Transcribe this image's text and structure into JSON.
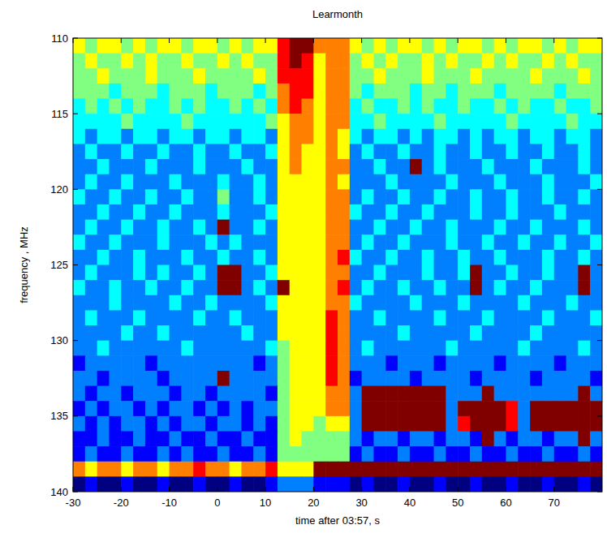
{
  "chart_data": {
    "type": "heatmap",
    "title": "Learmonth",
    "x_label": "time after 03:57, s",
    "y_label": "frequency , MHz",
    "xlim": [
      -30,
      80
    ],
    "ylim": [
      140,
      110
    ],
    "xticks": [
      -30,
      -20,
      -10,
      0,
      10,
      20,
      30,
      40,
      50,
      60,
      70
    ],
    "yticks": [
      110,
      115,
      120,
      125,
      130,
      135,
      140
    ],
    "x": [
      -30,
      -27.5,
      -25,
      -22.5,
      -20,
      -17.5,
      -15,
      -12.5,
      -10,
      -7.5,
      -5,
      -2.5,
      0,
      2.5,
      5,
      7.5,
      10,
      12.5,
      15,
      17.5,
      20,
      22.5,
      25,
      27.5,
      30,
      32.5,
      35,
      37.5,
      40,
      42.5,
      45,
      47.5,
      50,
      52.5,
      55,
      57.5,
      60,
      62.5,
      65,
      67.5,
      70,
      72.5,
      75,
      77.5
    ],
    "y": [
      110,
      111,
      112,
      113,
      114,
      115,
      116,
      117,
      118,
      119,
      120,
      121,
      122,
      123,
      124,
      125,
      126,
      127,
      128,
      129,
      130,
      131,
      132,
      133,
      134,
      135,
      136,
      137,
      138,
      139
    ],
    "cells": [
      [
        6,
        5,
        6,
        6,
        5,
        6,
        5,
        6,
        6,
        5,
        6,
        6,
        5,
        6,
        5,
        6,
        6,
        8,
        9,
        9,
        7,
        7,
        7,
        6,
        5,
        6,
        5,
        6,
        6,
        5,
        6,
        5,
        6,
        6,
        5,
        6,
        5,
        6,
        6,
        5,
        6,
        5,
        6,
        6
      ],
      [
        5,
        6,
        5,
        5,
        6,
        5,
        6,
        5,
        5,
        6,
        5,
        5,
        6,
        5,
        6,
        5,
        5,
        8,
        9,
        8,
        6,
        7,
        7,
        5,
        6,
        5,
        6,
        5,
        5,
        6,
        5,
        6,
        5,
        5,
        6,
        5,
        6,
        5,
        5,
        6,
        5,
        6,
        5,
        5
      ],
      [
        5,
        5,
        6,
        5,
        5,
        5,
        6,
        5,
        5,
        5,
        6,
        5,
        5,
        5,
        5,
        6,
        5,
        8,
        8,
        8,
        6,
        7,
        7,
        5,
        5,
        6,
        5,
        5,
        5,
        6,
        5,
        5,
        5,
        6,
        5,
        5,
        5,
        5,
        6,
        5,
        5,
        5,
        6,
        5
      ],
      [
        5,
        5,
        5,
        4,
        5,
        5,
        5,
        4,
        5,
        5,
        5,
        4,
        5,
        5,
        5,
        4,
        5,
        7,
        8,
        8,
        6,
        7,
        7,
        5,
        4,
        5,
        5,
        5,
        4,
        5,
        5,
        4,
        5,
        5,
        5,
        4,
        5,
        5,
        5,
        5,
        4,
        5,
        5,
        5
      ],
      [
        4,
        5,
        4,
        5,
        4,
        5,
        4,
        4,
        5,
        4,
        5,
        4,
        4,
        5,
        4,
        5,
        4,
        7,
        8,
        7,
        6,
        7,
        7,
        4,
        5,
        4,
        4,
        5,
        4,
        5,
        4,
        4,
        5,
        4,
        4,
        5,
        4,
        5,
        4,
        4,
        5,
        4,
        4,
        5
      ],
      [
        4,
        4,
        4,
        4,
        5,
        4,
        4,
        4,
        4,
        5,
        4,
        4,
        4,
        4,
        4,
        4,
        5,
        6,
        7,
        7,
        6,
        7,
        7,
        4,
        4,
        5,
        4,
        4,
        4,
        4,
        5,
        4,
        4,
        4,
        4,
        4,
        5,
        4,
        4,
        4,
        4,
        5,
        4,
        4
      ],
      [
        4,
        3,
        4,
        4,
        3,
        4,
        4,
        3,
        4,
        4,
        3,
        4,
        4,
        3,
        4,
        4,
        3,
        6,
        7,
        7,
        6,
        7,
        6,
        4,
        3,
        4,
        4,
        3,
        4,
        3,
        4,
        4,
        3,
        4,
        3,
        4,
        4,
        3,
        4,
        4,
        3,
        4,
        4,
        3
      ],
      [
        3,
        4,
        3,
        3,
        4,
        3,
        3,
        4,
        3,
        3,
        4,
        3,
        3,
        4,
        3,
        3,
        4,
        6,
        7,
        6,
        6,
        7,
        6,
        3,
        4,
        3,
        3,
        4,
        3,
        3,
        4,
        3,
        3,
        4,
        3,
        3,
        4,
        3,
        3,
        4,
        3,
        3,
        4,
        3
      ],
      [
        3,
        3,
        4,
        3,
        3,
        3,
        4,
        3,
        3,
        3,
        4,
        3,
        3,
        3,
        4,
        3,
        3,
        6,
        7,
        6,
        6,
        7,
        7,
        3,
        3,
        4,
        3,
        3,
        9,
        3,
        4,
        3,
        3,
        3,
        4,
        3,
        3,
        3,
        4,
        3,
        3,
        3,
        4,
        3
      ],
      [
        3,
        4,
        3,
        3,
        4,
        3,
        3,
        3,
        4,
        3,
        3,
        3,
        4,
        3,
        3,
        4,
        3,
        6,
        6,
        6,
        6,
        7,
        6,
        3,
        3,
        3,
        4,
        3,
        3,
        3,
        3,
        4,
        3,
        3,
        3,
        4,
        3,
        3,
        3,
        4,
        3,
        3,
        3,
        4
      ],
      [
        4,
        3,
        3,
        4,
        3,
        3,
        4,
        3,
        3,
        4,
        3,
        3,
        5,
        3,
        3,
        4,
        3,
        6,
        6,
        6,
        6,
        7,
        7,
        3,
        4,
        3,
        3,
        4,
        3,
        3,
        4,
        3,
        3,
        4,
        3,
        3,
        4,
        3,
        3,
        4,
        3,
        3,
        4,
        3
      ],
      [
        3,
        3,
        4,
        3,
        3,
        4,
        3,
        3,
        4,
        3,
        3,
        3,
        4,
        3,
        3,
        3,
        4,
        6,
        6,
        6,
        6,
        7,
        7,
        4,
        3,
        3,
        4,
        3,
        3,
        4,
        3,
        3,
        3,
        4,
        3,
        3,
        4,
        3,
        3,
        3,
        4,
        3,
        3,
        3
      ],
      [
        3,
        4,
        3,
        3,
        4,
        3,
        3,
        4,
        3,
        3,
        4,
        3,
        9,
        3,
        3,
        4,
        3,
        6,
        6,
        6,
        6,
        7,
        7,
        3,
        3,
        4,
        3,
        3,
        4,
        3,
        3,
        4,
        3,
        3,
        3,
        4,
        3,
        3,
        4,
        3,
        3,
        3,
        4,
        3
      ],
      [
        4,
        3,
        3,
        4,
        3,
        3,
        3,
        4,
        3,
        3,
        3,
        4,
        3,
        4,
        3,
        3,
        3,
        6,
        6,
        6,
        6,
        7,
        7,
        3,
        4,
        3,
        3,
        4,
        3,
        3,
        3,
        4,
        3,
        3,
        4,
        3,
        3,
        4,
        3,
        3,
        4,
        3,
        3,
        4
      ],
      [
        3,
        3,
        4,
        3,
        3,
        4,
        3,
        3,
        3,
        4,
        3,
        3,
        4,
        3,
        3,
        4,
        3,
        6,
        6,
        6,
        6,
        7,
        8,
        4,
        3,
        3,
        4,
        3,
        3,
        4,
        3,
        3,
        4,
        3,
        3,
        4,
        3,
        3,
        3,
        4,
        3,
        3,
        4,
        3
      ],
      [
        3,
        4,
        3,
        3,
        3,
        4,
        3,
        4,
        3,
        3,
        4,
        3,
        9,
        9,
        3,
        3,
        4,
        6,
        6,
        6,
        6,
        7,
        7,
        3,
        3,
        4,
        3,
        3,
        3,
        4,
        3,
        3,
        4,
        9,
        3,
        3,
        4,
        3,
        3,
        4,
        3,
        3,
        9,
        3
      ],
      [
        4,
        3,
        3,
        4,
        3,
        3,
        4,
        3,
        3,
        4,
        3,
        3,
        9,
        9,
        3,
        4,
        3,
        9,
        6,
        6,
        6,
        7,
        8,
        3,
        4,
        3,
        3,
        4,
        3,
        3,
        4,
        3,
        3,
        9,
        3,
        4,
        3,
        3,
        4,
        3,
        3,
        3,
        9,
        3
      ],
      [
        3,
        3,
        3,
        4,
        3,
        3,
        3,
        3,
        4,
        3,
        3,
        4,
        3,
        3,
        3,
        3,
        4,
        6,
        6,
        6,
        6,
        7,
        7,
        4,
        3,
        3,
        3,
        3,
        4,
        3,
        3,
        3,
        4,
        3,
        3,
        3,
        3,
        4,
        3,
        3,
        3,
        4,
        3,
        3
      ],
      [
        3,
        4,
        3,
        3,
        3,
        4,
        3,
        3,
        3,
        3,
        4,
        3,
        3,
        4,
        3,
        3,
        3,
        6,
        6,
        6,
        6,
        8,
        7,
        3,
        3,
        4,
        3,
        3,
        3,
        3,
        4,
        3,
        3,
        3,
        4,
        3,
        3,
        3,
        3,
        4,
        3,
        3,
        3,
        4
      ],
      [
        3,
        3,
        3,
        3,
        4,
        3,
        3,
        4,
        3,
        3,
        3,
        3,
        3,
        3,
        4,
        3,
        3,
        6,
        6,
        6,
        6,
        8,
        7,
        3,
        3,
        3,
        3,
        4,
        3,
        3,
        3,
        3,
        3,
        4,
        3,
        3,
        3,
        3,
        4,
        3,
        3,
        3,
        3,
        3
      ],
      [
        3,
        3,
        4,
        3,
        3,
        3,
        3,
        3,
        3,
        4,
        3,
        3,
        3,
        3,
        3,
        3,
        4,
        5,
        6,
        6,
        6,
        8,
        7,
        3,
        4,
        3,
        3,
        3,
        3,
        3,
        3,
        4,
        3,
        3,
        3,
        3,
        3,
        4,
        3,
        3,
        3,
        3,
        4,
        3
      ],
      [
        2,
        3,
        3,
        3,
        3,
        3,
        2,
        3,
        3,
        3,
        3,
        3,
        3,
        3,
        3,
        2,
        3,
        5,
        6,
        6,
        6,
        8,
        7,
        3,
        3,
        3,
        2,
        3,
        3,
        3,
        2,
        3,
        3,
        3,
        3,
        2,
        3,
        3,
        3,
        3,
        2,
        3,
        3,
        3
      ],
      [
        3,
        3,
        2,
        3,
        3,
        3,
        3,
        2,
        3,
        3,
        3,
        3,
        9,
        3,
        3,
        3,
        3,
        5,
        6,
        6,
        6,
        8,
        7,
        2,
        3,
        3,
        3,
        3,
        2,
        3,
        3,
        3,
        3,
        2,
        3,
        3,
        3,
        3,
        2,
        3,
        3,
        3,
        3,
        2
      ],
      [
        3,
        2,
        3,
        3,
        2,
        3,
        3,
        3,
        2,
        3,
        3,
        2,
        3,
        3,
        3,
        3,
        2,
        5,
        6,
        6,
        6,
        7,
        7,
        3,
        9,
        9,
        9,
        9,
        9,
        9,
        9,
        3,
        3,
        3,
        9,
        3,
        3,
        3,
        3,
        3,
        3,
        3,
        9,
        3
      ],
      [
        2,
        3,
        2,
        3,
        3,
        2,
        3,
        2,
        3,
        3,
        2,
        3,
        2,
        3,
        2,
        3,
        3,
        5,
        6,
        6,
        6,
        7,
        7,
        3,
        9,
        9,
        9,
        9,
        9,
        9,
        9,
        3,
        9,
        9,
        9,
        9,
        8,
        3,
        9,
        9,
        9,
        9,
        9,
        9
      ],
      [
        3,
        2,
        3,
        2,
        3,
        3,
        2,
        3,
        2,
        3,
        3,
        2,
        3,
        3,
        2,
        3,
        2,
        5,
        6,
        6,
        5,
        6,
        6,
        3,
        9,
        9,
        9,
        9,
        9,
        9,
        9,
        3,
        8,
        9,
        9,
        9,
        8,
        3,
        9,
        9,
        9,
        9,
        9,
        9
      ],
      [
        2,
        2,
        3,
        2,
        2,
        3,
        2,
        2,
        3,
        2,
        2,
        3,
        2,
        2,
        3,
        2,
        2,
        5,
        6,
        5,
        5,
        5,
        5,
        3,
        2,
        3,
        3,
        2,
        3,
        3,
        2,
        3,
        3,
        2,
        9,
        3,
        2,
        3,
        3,
        2,
        3,
        3,
        9,
        3
      ],
      [
        2,
        3,
        2,
        2,
        3,
        2,
        2,
        3,
        2,
        3,
        2,
        2,
        3,
        2,
        2,
        3,
        2,
        5,
        5,
        5,
        5,
        5,
        5,
        2,
        3,
        2,
        2,
        3,
        2,
        2,
        3,
        2,
        2,
        3,
        2,
        2,
        3,
        2,
        2,
        3,
        2,
        2,
        3,
        2
      ],
      [
        7,
        6,
        7,
        7,
        6,
        7,
        7,
        6,
        7,
        7,
        8,
        7,
        7,
        6,
        7,
        7,
        8,
        6,
        6,
        6,
        9,
        9,
        9,
        9,
        9,
        9,
        9,
        9,
        9,
        9,
        9,
        9,
        9,
        9,
        9,
        9,
        9,
        9,
        9,
        9,
        9,
        9,
        9,
        9
      ],
      [
        1,
        2,
        1,
        1,
        2,
        1,
        1,
        2,
        1,
        1,
        2,
        1,
        1,
        2,
        1,
        1,
        2,
        3,
        3,
        3,
        2,
        2,
        2,
        1,
        2,
        1,
        1,
        2,
        1,
        1,
        2,
        1,
        1,
        2,
        1,
        1,
        2,
        1,
        1,
        2,
        1,
        1,
        2,
        1
      ]
    ]
  }
}
